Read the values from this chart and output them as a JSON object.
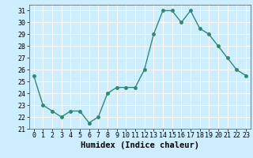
{
  "x": [
    0,
    1,
    2,
    3,
    4,
    5,
    6,
    7,
    8,
    9,
    10,
    11,
    12,
    13,
    14,
    15,
    16,
    17,
    18,
    19,
    20,
    21,
    22,
    23
  ],
  "y": [
    25.5,
    23.0,
    22.5,
    22.0,
    22.5,
    22.5,
    21.5,
    22.0,
    24.0,
    24.5,
    24.5,
    24.5,
    26.0,
    29.0,
    31.0,
    31.0,
    30.0,
    31.0,
    29.5,
    29.0,
    28.0,
    27.0,
    26.0,
    25.5
  ],
  "xlabel": "Humidex (Indice chaleur)",
  "ylim": [
    21,
    31.5
  ],
  "yticks": [
    21,
    22,
    23,
    24,
    25,
    26,
    27,
    28,
    29,
    30,
    31
  ],
  "xlim": [
    -0.5,
    23.5
  ],
  "xticks": [
    0,
    1,
    2,
    3,
    4,
    5,
    6,
    7,
    8,
    9,
    10,
    11,
    12,
    13,
    14,
    15,
    16,
    17,
    18,
    19,
    20,
    21,
    22,
    23
  ],
  "line_color": "#2e8b72",
  "bg_color": "#cceeff",
  "grid_color": "#ffffff",
  "marker": "o",
  "markersize": 2.5,
  "linewidth": 1.0,
  "tick_fontsize": 6.0,
  "xlabel_fontsize": 7.5
}
